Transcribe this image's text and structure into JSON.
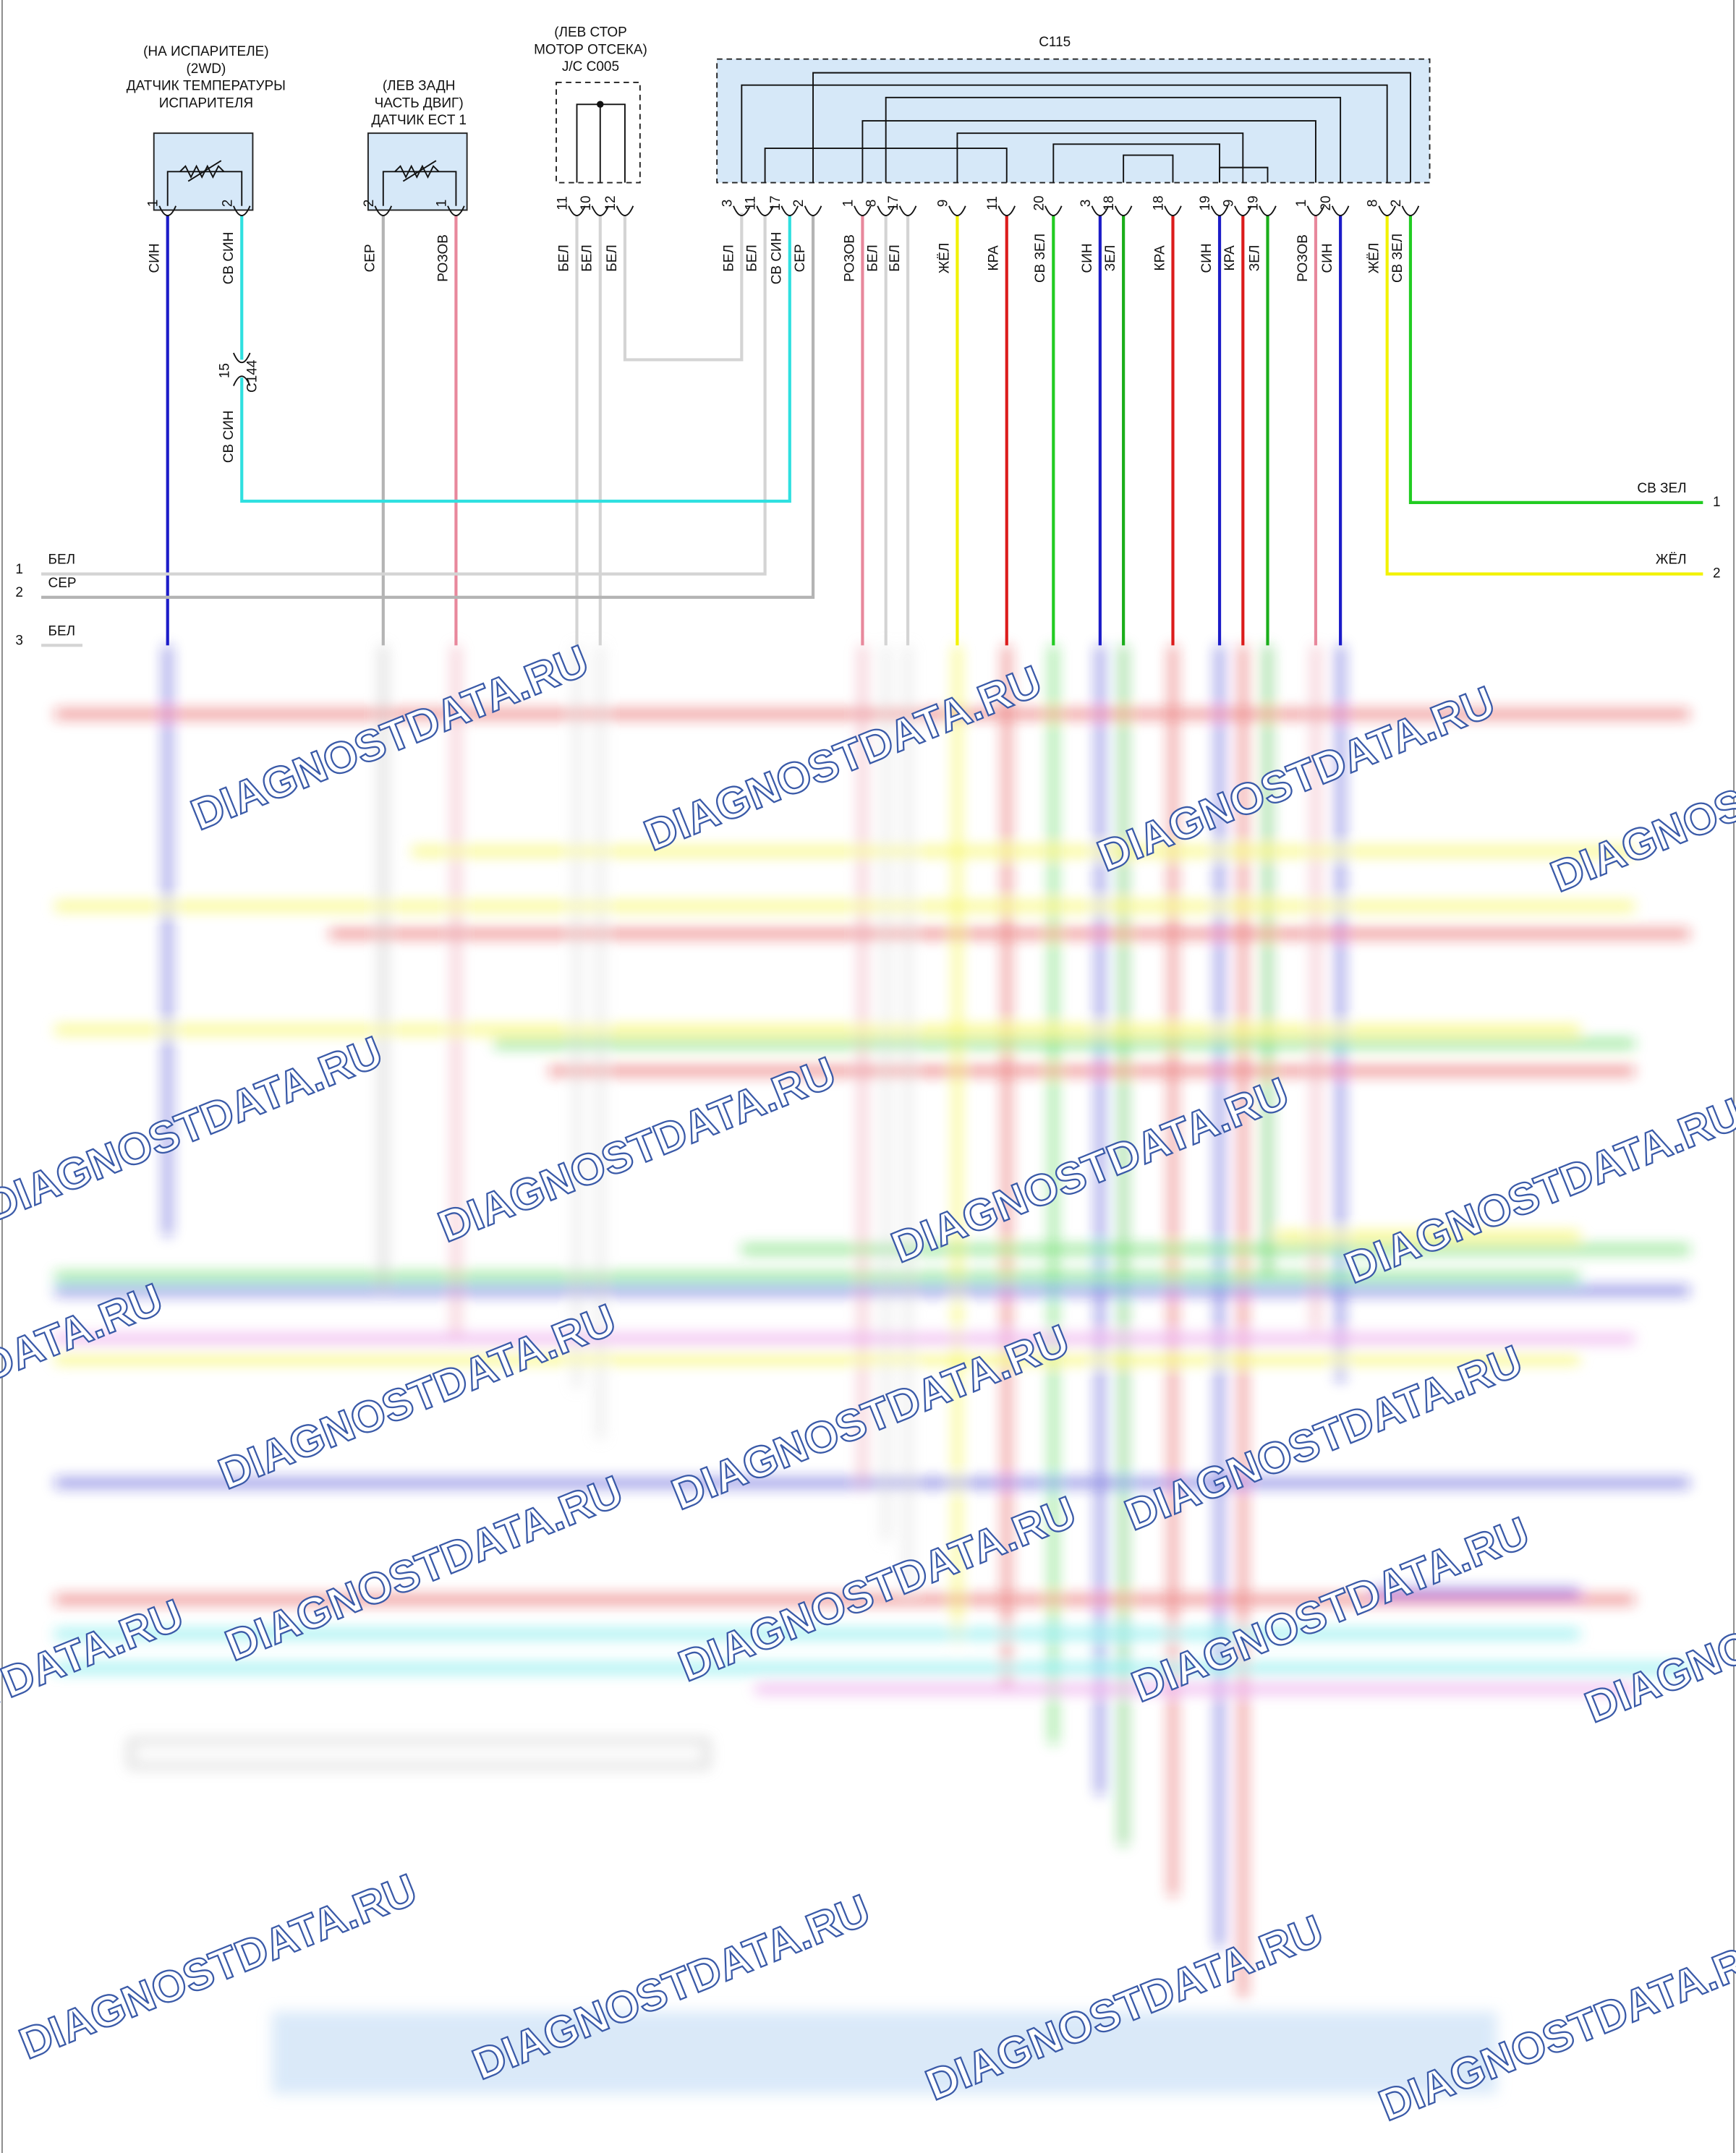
{
  "components": [
    {
      "label": [
        "(НА ИСПАРИТЕЛЕ)",
        "(2WD)",
        "ДАТЧИК ТЕМПЕРАТУРЫ",
        "ИСПАРИТЕЛЯ"
      ],
      "pins": [
        {
          "pin": "1",
          "wire": "СИН",
          "color": "#1c1cc8"
        },
        {
          "pin": "2",
          "wire": "СВ СИН",
          "color": "#2fe0e0"
        }
      ]
    },
    {
      "label": [
        "(ЛЕВ ЗАДН",
        "ЧАСТЬ ДВИГ)",
        "ДАТЧИК ECT 1"
      ],
      "pins": [
        {
          "pin": "2",
          "wire": "СЕР",
          "color": "#b4b4b4"
        },
        {
          "pin": "1",
          "wire": "РОЗОВ",
          "color": "#e8889c"
        }
      ]
    },
    {
      "label": [
        "(ЛЕВ СТОР",
        "МОТОР ОТСЕКА)",
        "J/C C005"
      ],
      "pins": [
        {
          "pin": "11",
          "wire": "БЕЛ",
          "color": "#d4d4d4"
        },
        {
          "pin": "10",
          "wire": "БЕЛ",
          "color": "#d4d4d4"
        },
        {
          "pin": "12",
          "wire": "БЕЛ",
          "color": "#d4d4d4"
        }
      ]
    },
    {
      "label": [
        "C115"
      ],
      "pins": [
        {
          "pin": "3",
          "wire": "БЕЛ",
          "color": "#d4d4d4"
        },
        {
          "pin": "11",
          "wire": "БЕЛ",
          "color": "#d4d4d4"
        },
        {
          "pin": "17",
          "wire": "СВ СИН",
          "color": "#2fe0e0"
        },
        {
          "pin": "2",
          "wire": "СЕР",
          "color": "#b4b4b4"
        },
        {
          "pin": "1",
          "wire": "РОЗОВ",
          "color": "#e8889c"
        },
        {
          "pin": "8",
          "wire": "БЕЛ",
          "color": "#d4d4d4"
        },
        {
          "pin": "17",
          "wire": "БЕЛ",
          "color": "#d4d4d4"
        },
        {
          "pin": "9",
          "wire": "ЖЁЛ",
          "color": "#f2f200"
        },
        {
          "pin": "11",
          "wire": "КРА",
          "color": "#dc1c1c"
        },
        {
          "pin": "20",
          "wire": "СВ ЗЕЛ",
          "color": "#22cc22"
        },
        {
          "pin": "3",
          "wire": "СИН",
          "color": "#1c1cc8"
        },
        {
          "pin": "18",
          "wire": "ЗЕЛ",
          "color": "#1aae1a"
        },
        {
          "pin": "18",
          "wire": "КРА",
          "color": "#dc1c1c"
        },
        {
          "pin": "19",
          "wire": "СИН",
          "color": "#1c1cc8"
        },
        {
          "pin": "9",
          "wire": "КРА",
          "color": "#dc1c1c"
        },
        {
          "pin": "19",
          "wire": "ЗЕЛ",
          "color": "#1aae1a"
        },
        {
          "pin": "1",
          "wire": "РОЗОВ",
          "color": "#e8889c"
        },
        {
          "pin": "20",
          "wire": "СИН",
          "color": "#1c1cc8"
        },
        {
          "pin": "8",
          "wire": "ЖЁЛ",
          "color": "#f2f200"
        },
        {
          "pin": "2",
          "wire": "СВ ЗЕЛ",
          "color": "#22cc22"
        }
      ]
    }
  ],
  "splice": {
    "pin": "15",
    "name": "C144",
    "wire": "СВ СИН"
  },
  "left_terminals": [
    {
      "pin": "1",
      "wire": "БЕЛ"
    },
    {
      "pin": "2",
      "wire": "СЕР"
    },
    {
      "pin": "3",
      "wire": "БЕЛ"
    }
  ],
  "right_terminals": [
    {
      "pin": "1",
      "wire": "СВ ЗЕЛ"
    },
    {
      "pin": "2",
      "wire": "ЖЁЛ"
    }
  ],
  "watermark": "DIAGNOSTDATA.RU"
}
